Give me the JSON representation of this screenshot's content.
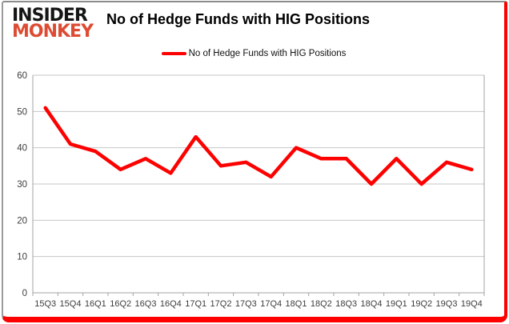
{
  "header": {
    "logo_line1": "INSIDER",
    "logo_line2": "MONKEY",
    "title": "No of Hedge Funds with HIG Positions"
  },
  "legend": {
    "label": "No of Hedge Funds with HIG Positions"
  },
  "colors": {
    "series_line": "#fe0000",
    "gridline": "#c6c6c6",
    "axis_line": "#a3a3a3",
    "tick_label": "#3d3d3d",
    "frame_red": "#fe0000",
    "frame_gray": "#8c8c8c",
    "logo_black": "#151515",
    "logo_red": "#dd4b32"
  },
  "chart_data": {
    "type": "line",
    "title": "No of Hedge Funds with HIG Positions",
    "xlabel": "",
    "ylabel": "",
    "categories": [
      "15Q3",
      "15Q4",
      "16Q1",
      "16Q2",
      "16Q3",
      "16Q4",
      "17Q1",
      "17Q2",
      "17Q3",
      "17Q4",
      "18Q1",
      "18Q2",
      "18Q3",
      "18Q4",
      "19Q1",
      "19Q2",
      "19Q3",
      "19Q4"
    ],
    "series": [
      {
        "name": "No of Hedge Funds with HIG Positions",
        "color": "#fe0000",
        "values": [
          51,
          41,
          39,
          34,
          37,
          33,
          43,
          35,
          36,
          32,
          40,
          37,
          37,
          30,
          37,
          30,
          36,
          34
        ]
      }
    ],
    "ylim": [
      0,
      60
    ],
    "ytick_step": 10,
    "grid": true,
    "legend_position": "top"
  }
}
